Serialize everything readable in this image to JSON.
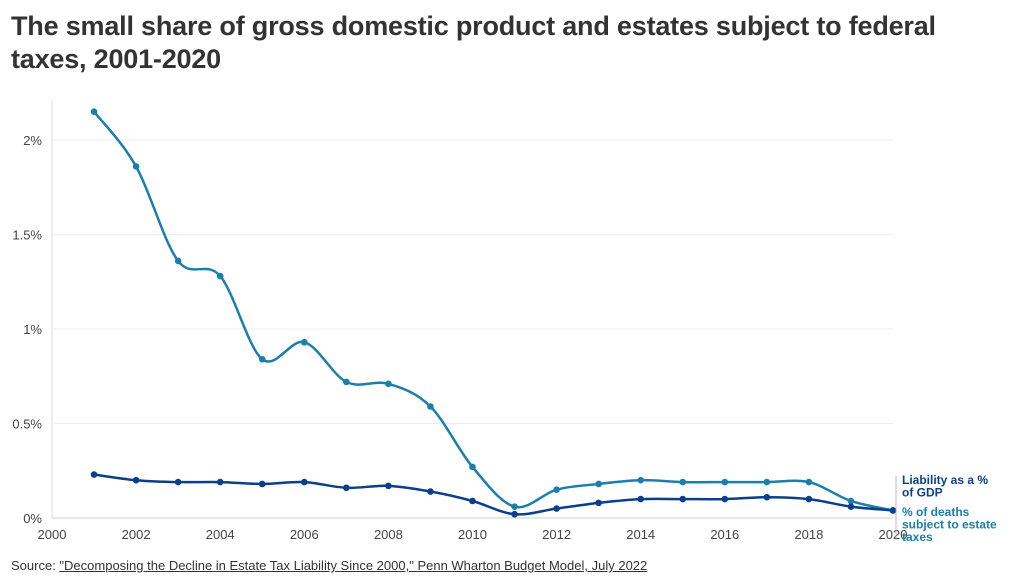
{
  "title": "The small share of gross domestic product and estates subject to federal taxes, 2001-2020",
  "source": {
    "prefix": "Source: ",
    "link_text": "\"Decomposing the Decline in Estate Tax Liability Since 2000,\" Penn Wharton Budget Model, July 2022"
  },
  "chart_data": {
    "type": "line",
    "title": "The small share of gross domestic product and estates subject to federal taxes, 2001-2020",
    "xlabel": "",
    "ylabel": "",
    "xlim": [
      2000,
      2020
    ],
    "ylim": [
      0,
      2.2
    ],
    "x_ticks": [
      2000,
      2002,
      2004,
      2006,
      2008,
      2010,
      2012,
      2014,
      2016,
      2018,
      2020
    ],
    "x_tick_labels": [
      "2000",
      "2002",
      "2004",
      "2006",
      "2008",
      "2010",
      "2012",
      "2014",
      "2016",
      "2018",
      "2020"
    ],
    "y_ticks": [
      0,
      0.5,
      1,
      1.5,
      2
    ],
    "y_tick_labels": [
      "0%",
      "0.5%",
      "1%",
      "1.5%",
      "2%"
    ],
    "grid": true,
    "x": [
      2001,
      2002,
      2003,
      2004,
      2005,
      2006,
      2007,
      2008,
      2009,
      2010,
      2011,
      2012,
      2013,
      2014,
      2015,
      2016,
      2017,
      2018,
      2019,
      2020
    ],
    "series": [
      {
        "name": "% of deaths subject to estate taxes",
        "color": "#1a7fad",
        "values": [
          2.15,
          1.86,
          1.36,
          1.28,
          0.84,
          0.93,
          0.72,
          0.71,
          0.59,
          0.27,
          0.06,
          0.15,
          0.18,
          0.2,
          0.19,
          0.19,
          0.19,
          0.19,
          0.09,
          0.04
        ]
      },
      {
        "name": "Liability as a % of GDP",
        "color": "#0b3f8c",
        "values": [
          0.23,
          0.2,
          0.19,
          0.19,
          0.18,
          0.19,
          0.16,
          0.17,
          0.14,
          0.09,
          0.02,
          0.05,
          0.08,
          0.1,
          0.1,
          0.1,
          0.11,
          0.1,
          0.06,
          0.04
        ]
      }
    ],
    "legend": "direct labels at right end of lines"
  }
}
